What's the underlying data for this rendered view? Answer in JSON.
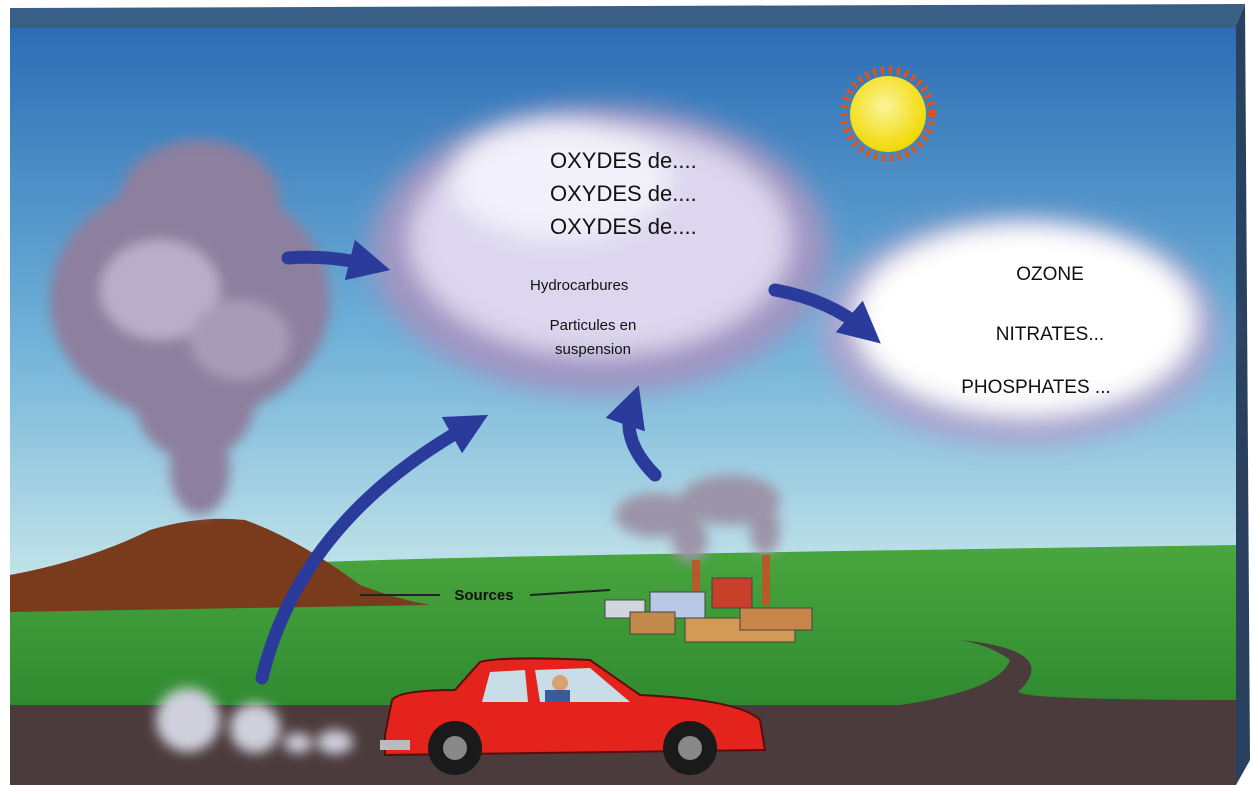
{
  "center_cloud": {
    "oxydes": [
      "OXYDES de....",
      "OXYDES de....",
      "OXYDES de...."
    ],
    "hydrocarbures": "Hydrocarbures",
    "particules": [
      "Particules en",
      "suspension"
    ]
  },
  "right_cloud": {
    "lines": [
      "OZONE",
      "NITRATES...",
      "PHOSPHATES ..."
    ]
  },
  "sources_label": "Sources"
}
